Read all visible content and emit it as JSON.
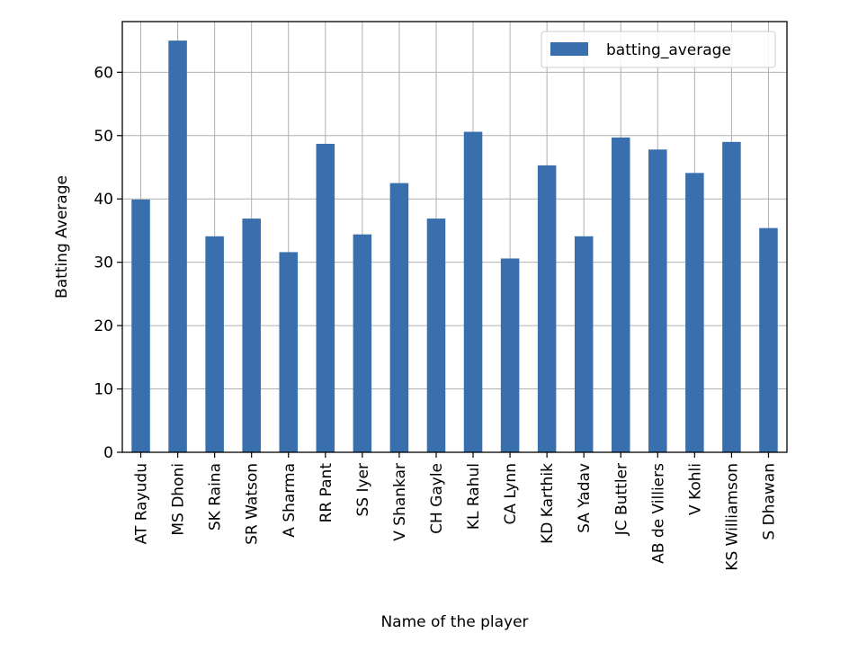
{
  "chart_data": {
    "type": "bar",
    "title": "",
    "xlabel": "Name of the player",
    "ylabel": "Batting Average",
    "ylim": [
      0,
      68
    ],
    "yticks": [
      0,
      10,
      20,
      30,
      40,
      50,
      60
    ],
    "grid": true,
    "legend_position": "top-right",
    "categories": [
      "AT Rayudu",
      "MS Dhoni",
      "SK Raina",
      "SR Watson",
      "A Sharma",
      "RR Pant",
      "SS Iyer",
      "V Shankar",
      "CH Gayle",
      "KL Rahul",
      "CA Lynn",
      "KD Karthik",
      "SA Yadav",
      "JC Buttler",
      "AB de Villiers",
      "V Kohli",
      "KS Williamson",
      "S Dhawan"
    ],
    "series": [
      {
        "name": "batting_average",
        "color": "#3a6fae",
        "values": [
          39.9,
          65.0,
          34.1,
          36.9,
          31.6,
          48.7,
          34.4,
          42.5,
          36.9,
          50.6,
          30.6,
          45.3,
          34.1,
          49.7,
          47.8,
          44.1,
          49.0,
          35.4
        ]
      }
    ]
  }
}
